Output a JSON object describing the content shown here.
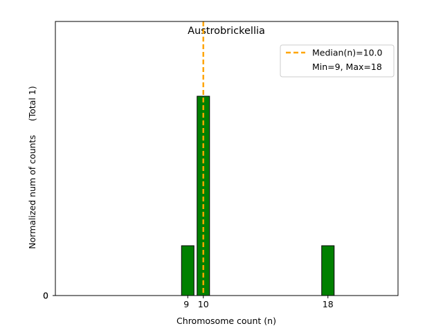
{
  "chart_data": {
    "type": "bar",
    "title": "Austrobrickellia",
    "xlabel": "Chromosome count (n)",
    "ylabel": "Normalized num of counts     (Total 1)",
    "x": [
      9,
      10,
      18
    ],
    "values": [
      1,
      4,
      1
    ],
    "xlim": [
      0.5,
      22.5
    ],
    "ylim": [
      0,
      5.5
    ],
    "xticks": [
      "9",
      "10",
      "18"
    ],
    "yticks": [
      "0",
      "0"
    ],
    "grid": false,
    "legend_position": "top-right",
    "bar_color": "#008000",
    "bar_edge_color": "#000000",
    "median_line": {
      "value": 10.0,
      "color": "#FFA500",
      "label": "Median(n)=10.0"
    },
    "legend": [
      {
        "label": "Median(n)=10.0",
        "marker": "dashed-line",
        "color": "#FFA500"
      },
      {
        "label": "Min=9, Max=18",
        "marker": "none",
        "color": ""
      }
    ]
  }
}
